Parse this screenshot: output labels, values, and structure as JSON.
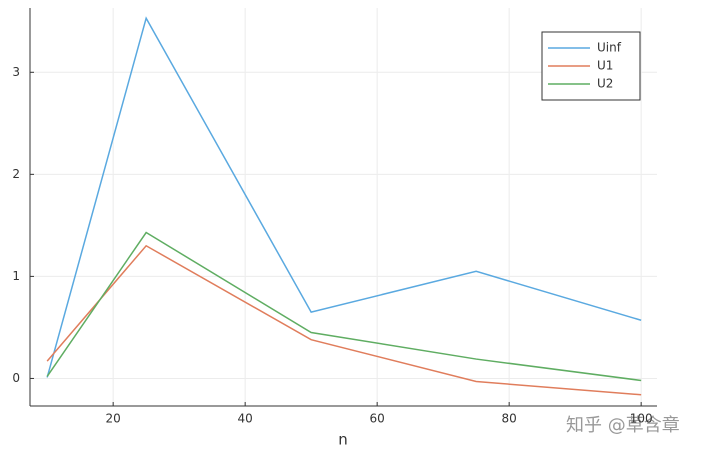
{
  "chart_data": {
    "type": "line",
    "xlabel": "n",
    "x": [
      10,
      25,
      50,
      75,
      100
    ],
    "series": [
      {
        "name": "Uinf",
        "color": "#5aa9e0",
        "values": [
          0.01,
          3.53,
          0.65,
          1.05,
          0.57
        ]
      },
      {
        "name": "U1",
        "color": "#e07d5c",
        "values": [
          0.17,
          1.3,
          0.38,
          -0.03,
          -0.16
        ]
      },
      {
        "name": "U2",
        "color": "#5fad62",
        "values": [
          0.02,
          1.43,
          0.45,
          0.19,
          -0.02
        ]
      }
    ],
    "xlim": [
      7.4,
      102.4
    ],
    "ylim": [
      -0.27,
      3.63
    ],
    "xticks": [
      20,
      40,
      60,
      80,
      100
    ],
    "yticks": [
      0,
      1,
      2,
      3
    ],
    "grid": true,
    "legend": "top-right"
  },
  "watermark": "知乎 @草含章"
}
